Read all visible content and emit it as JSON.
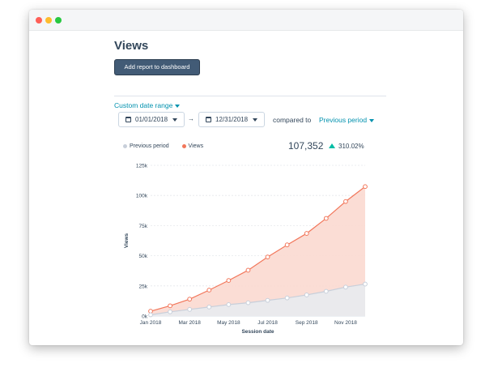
{
  "page": {
    "title": "Views",
    "add_button_label": "Add report to dashboard"
  },
  "filters": {
    "date_range_label": "Custom date range",
    "start_date": "01/01/2018",
    "end_date": "12/31/2018",
    "arrow": "→",
    "compared_label": "compared to",
    "compare_period": "Previous period"
  },
  "summary": {
    "total": "107,352",
    "change": "310.02%"
  },
  "colors": {
    "views": "#f2775b",
    "previous": "#c8cfda",
    "accent": "#0091ae",
    "up": "#00bda5"
  },
  "chart_data": {
    "type": "area",
    "xlabel": "Session date",
    "ylabel": "Views",
    "ylim": [
      0,
      125000
    ],
    "yticks": [
      0,
      25000,
      50000,
      75000,
      100000,
      125000
    ],
    "ytick_labels": [
      "0k",
      "25k",
      "50k",
      "75k",
      "100k",
      "125k"
    ],
    "x": [
      "Jan 2018",
      "Feb 2018",
      "Mar 2018",
      "Apr 2018",
      "May 2018",
      "Jun 2018",
      "Jul 2018",
      "Aug 2018",
      "Sep 2018",
      "Oct 2018",
      "Nov 2018",
      "Dec 2018"
    ],
    "xtick_labels": [
      "Jan 2018",
      "Mar 2018",
      "May 2018",
      "Jul 2018",
      "Sep 2018",
      "Nov 2018"
    ],
    "legend_position": "top-left",
    "grid": true,
    "series": [
      {
        "name": "Previous period",
        "values": [
          1000,
          3500,
          5500,
          7500,
          9500,
          11000,
          13000,
          15000,
          17500,
          20500,
          24000,
          26500
        ]
      },
      {
        "name": "Views",
        "values": [
          4000,
          8500,
          14000,
          21500,
          29500,
          38000,
          49000,
          59000,
          68500,
          81000,
          95000,
          107352
        ]
      }
    ]
  }
}
